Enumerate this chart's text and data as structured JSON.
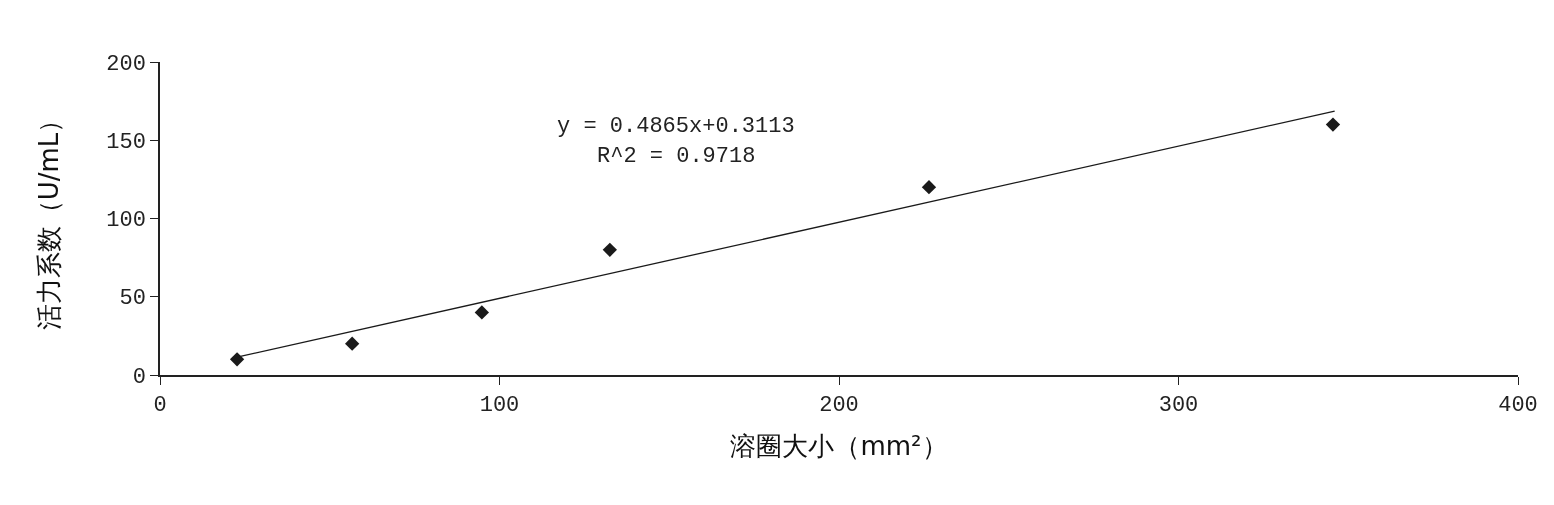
{
  "chart_data": {
    "type": "scatter",
    "xlabel": "溶圈大小（mm²）",
    "ylabel": "活力系数（U/mL）",
    "annotations": [
      "y = 0.4865x+0.3113",
      "R^2 = 0.9718"
    ],
    "x": [
      22.7,
      56.6,
      94.8,
      132.5,
      226.5,
      345.5
    ],
    "series": [
      {
        "color": "#1a1a1a",
        "marker": "diamond",
        "values": [
          10,
          20,
          40,
          80,
          120,
          160
        ]
      },
      {
        "type": "line",
        "color": "#1a1a1a",
        "x": [
          22.7,
          346
        ],
        "values": [
          11.4,
          168.6
        ],
        "line_style": "solid"
      }
    ],
    "xlim": [
      0,
      400
    ],
    "xticks": [
      0,
      100,
      200,
      300,
      400
    ],
    "ylim": [
      0,
      200
    ],
    "yticks": [
      0,
      50,
      100,
      150,
      200
    ],
    "grid": false,
    "legend": false
  }
}
